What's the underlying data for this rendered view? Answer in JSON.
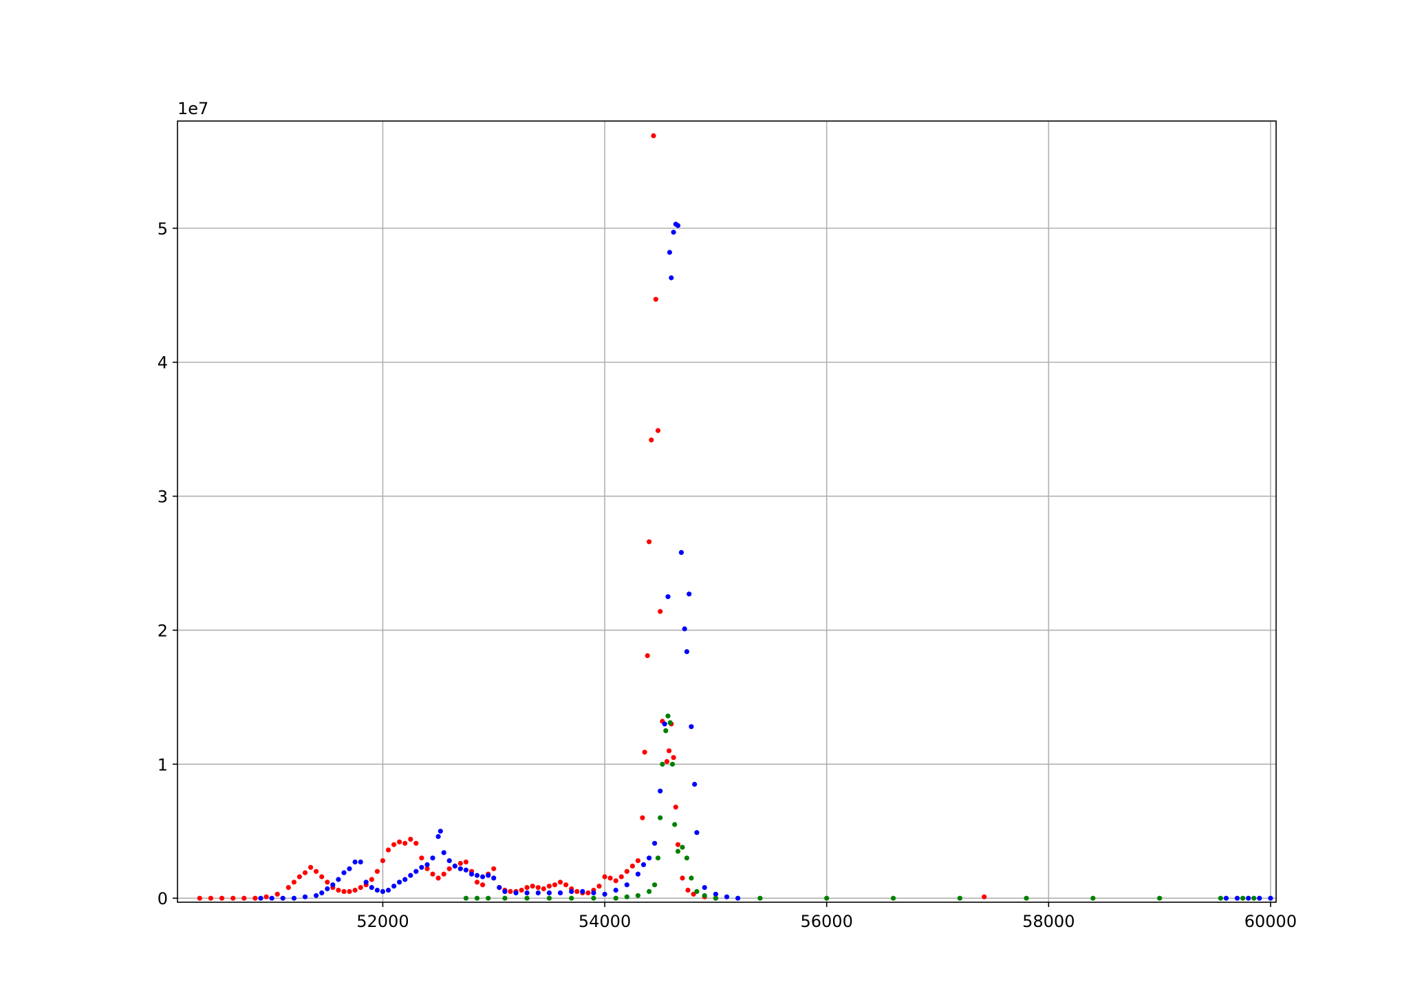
{
  "chart_data": {
    "type": "scatter",
    "title": "",
    "xlabel": "",
    "ylabel": "",
    "y_offset_label": "1e7",
    "xlim": [
      50150,
      60050
    ],
    "ylim": [
      -0.03,
      5.8
    ],
    "x_ticks": [
      52000,
      54000,
      56000,
      58000,
      60000
    ],
    "x_tick_labels": [
      "52000",
      "54000",
      "56000",
      "58000",
      "60000"
    ],
    "y_ticks": [
      0,
      1,
      2,
      3,
      4,
      5
    ],
    "y_tick_labels": [
      "0",
      "1",
      "2",
      "3",
      "4",
      "5"
    ],
    "grid": true,
    "legend": "none",
    "series": [
      {
        "color": "#ff0000",
        "points": [
          [
            50350,
            0
          ],
          [
            50450,
            0
          ],
          [
            50550,
            0
          ],
          [
            50650,
            0
          ],
          [
            50750,
            0
          ],
          [
            50850,
            0
          ],
          [
            50950,
            0.01
          ],
          [
            51050,
            0.03
          ],
          [
            51150,
            0.08
          ],
          [
            51200,
            0.12
          ],
          [
            51250,
            0.16
          ],
          [
            51300,
            0.19
          ],
          [
            51350,
            0.23
          ],
          [
            51400,
            0.2
          ],
          [
            51450,
            0.16
          ],
          [
            51500,
            0.12
          ],
          [
            51550,
            0.08
          ],
          [
            51600,
            0.06
          ],
          [
            51650,
            0.05
          ],
          [
            51700,
            0.05
          ],
          [
            51750,
            0.06
          ],
          [
            51800,
            0.08
          ],
          [
            51850,
            0.1
          ],
          [
            51900,
            0.14
          ],
          [
            51950,
            0.2
          ],
          [
            52000,
            0.28
          ],
          [
            52050,
            0.36
          ],
          [
            52100,
            0.4
          ],
          [
            52150,
            0.42
          ],
          [
            52200,
            0.41
          ],
          [
            52250,
            0.44
          ],
          [
            52300,
            0.41
          ],
          [
            52350,
            0.3
          ],
          [
            52400,
            0.22
          ],
          [
            52450,
            0.18
          ],
          [
            52500,
            0.15
          ],
          [
            52550,
            0.18
          ],
          [
            52600,
            0.22
          ],
          [
            52650,
            0.24
          ],
          [
            52700,
            0.26
          ],
          [
            52750,
            0.27
          ],
          [
            52800,
            0.2
          ],
          [
            52850,
            0.12
          ],
          [
            52900,
            0.1
          ],
          [
            52950,
            0.18
          ],
          [
            53000,
            0.22
          ],
          [
            53050,
            0.08
          ],
          [
            53100,
            0.06
          ],
          [
            53150,
            0.05
          ],
          [
            53200,
            0.05
          ],
          [
            53250,
            0.06
          ],
          [
            53300,
            0.08
          ],
          [
            53350,
            0.09
          ],
          [
            53400,
            0.08
          ],
          [
            53450,
            0.07
          ],
          [
            53500,
            0.09
          ],
          [
            53550,
            0.1
          ],
          [
            53600,
            0.12
          ],
          [
            53650,
            0.1
          ],
          [
            53700,
            0.07
          ],
          [
            53750,
            0.05
          ],
          [
            53800,
            0.04
          ],
          [
            53850,
            0.04
          ],
          [
            53900,
            0.06
          ],
          [
            53950,
            0.09
          ],
          [
            54000,
            0.16
          ],
          [
            54050,
            0.15
          ],
          [
            54100,
            0.13
          ],
          [
            54150,
            0.16
          ],
          [
            54200,
            0.2
          ],
          [
            54250,
            0.24
          ],
          [
            54300,
            0.28
          ],
          [
            54340,
            0.6
          ],
          [
            54360,
            1.09
          ],
          [
            54385,
            1.81
          ],
          [
            54400,
            2.66
          ],
          [
            54420,
            3.42
          ],
          [
            54440,
            5.69
          ],
          [
            54460,
            4.47
          ],
          [
            54480,
            3.49
          ],
          [
            54500,
            2.14
          ],
          [
            54520,
            1.32
          ],
          [
            54560,
            1.02
          ],
          [
            54580,
            1.1
          ],
          [
            54600,
            1.3
          ],
          [
            54620,
            1.05
          ],
          [
            54640,
            0.68
          ],
          [
            54660,
            0.4
          ],
          [
            54700,
            0.15
          ],
          [
            54750,
            0.06
          ],
          [
            54800,
            0.03
          ],
          [
            54900,
            0.01
          ],
          [
            55000,
            0
          ],
          [
            57420,
            0.01
          ]
        ]
      },
      {
        "color": "#0000ff",
        "points": [
          [
            50900,
            0
          ],
          [
            51000,
            0
          ],
          [
            51100,
            0
          ],
          [
            51200,
            0
          ],
          [
            51300,
            0.01
          ],
          [
            51400,
            0.02
          ],
          [
            51450,
            0.04
          ],
          [
            51500,
            0.07
          ],
          [
            51550,
            0.1
          ],
          [
            51600,
            0.14
          ],
          [
            51650,
            0.19
          ],
          [
            51700,
            0.22
          ],
          [
            51750,
            0.27
          ],
          [
            51800,
            0.27
          ],
          [
            51850,
            0.12
          ],
          [
            51900,
            0.08
          ],
          [
            51950,
            0.06
          ],
          [
            52000,
            0.05
          ],
          [
            52050,
            0.06
          ],
          [
            52100,
            0.09
          ],
          [
            52150,
            0.12
          ],
          [
            52200,
            0.14
          ],
          [
            52250,
            0.17
          ],
          [
            52300,
            0.2
          ],
          [
            52350,
            0.23
          ],
          [
            52400,
            0.25
          ],
          [
            52450,
            0.3
          ],
          [
            52500,
            0.46
          ],
          [
            52520,
            0.5
          ],
          [
            52550,
            0.34
          ],
          [
            52600,
            0.28
          ],
          [
            52650,
            0.24
          ],
          [
            52700,
            0.22
          ],
          [
            52750,
            0.21
          ],
          [
            52800,
            0.18
          ],
          [
            52850,
            0.17
          ],
          [
            52900,
            0.16
          ],
          [
            52950,
            0.17
          ],
          [
            53000,
            0.15
          ],
          [
            53050,
            0.08
          ],
          [
            53100,
            0.05
          ],
          [
            53200,
            0.04
          ],
          [
            53300,
            0.04
          ],
          [
            53400,
            0.04
          ],
          [
            53500,
            0.04
          ],
          [
            53600,
            0.04
          ],
          [
            53700,
            0.05
          ],
          [
            53800,
            0.05
          ],
          [
            53900,
            0.04
          ],
          [
            54000,
            0.03
          ],
          [
            54100,
            0.06
          ],
          [
            54200,
            0.1
          ],
          [
            54300,
            0.18
          ],
          [
            54350,
            0.25
          ],
          [
            54400,
            0.3
          ],
          [
            54450,
            0.41
          ],
          [
            54500,
            0.8
          ],
          [
            54540,
            1.3
          ],
          [
            54570,
            2.25
          ],
          [
            54585,
            4.82
          ],
          [
            54600,
            4.63
          ],
          [
            54620,
            4.97
          ],
          [
            54640,
            5.03
          ],
          [
            54660,
            5.02
          ],
          [
            54690,
            2.58
          ],
          [
            54720,
            2.01
          ],
          [
            54740,
            1.84
          ],
          [
            54760,
            2.27
          ],
          [
            54780,
            1.28
          ],
          [
            54810,
            0.85
          ],
          [
            54830,
            0.49
          ],
          [
            54900,
            0.08
          ],
          [
            55000,
            0.03
          ],
          [
            55100,
            0.01
          ],
          [
            55200,
            0
          ],
          [
            59600,
            0
          ],
          [
            59700,
            0
          ],
          [
            59800,
            0
          ],
          [
            59900,
            0
          ],
          [
            60000,
            0
          ]
        ]
      },
      {
        "color": "#008000",
        "points": [
          [
            52750,
            0
          ],
          [
            52850,
            0
          ],
          [
            52950,
            0
          ],
          [
            53100,
            0
          ],
          [
            53300,
            0
          ],
          [
            53500,
            0
          ],
          [
            53700,
            0
          ],
          [
            53900,
            0
          ],
          [
            54100,
            0
          ],
          [
            54200,
            0.01
          ],
          [
            54300,
            0.02
          ],
          [
            54400,
            0.05
          ],
          [
            54450,
            0.1
          ],
          [
            54480,
            0.3
          ],
          [
            54500,
            0.6
          ],
          [
            54520,
            1.0
          ],
          [
            54550,
            1.25
          ],
          [
            54570,
            1.36
          ],
          [
            54590,
            1.31
          ],
          [
            54610,
            1.0
          ],
          [
            54630,
            0.55
          ],
          [
            54660,
            0.35
          ],
          [
            54700,
            0.38
          ],
          [
            54740,
            0.3
          ],
          [
            54780,
            0.15
          ],
          [
            54830,
            0.05
          ],
          [
            54900,
            0.02
          ],
          [
            55000,
            0
          ],
          [
            55400,
            0
          ],
          [
            56000,
            0
          ],
          [
            56600,
            0
          ],
          [
            57200,
            0
          ],
          [
            57800,
            0
          ],
          [
            58400,
            0
          ],
          [
            59000,
            0
          ],
          [
            59550,
            0
          ],
          [
            59750,
            0
          ],
          [
            59850,
            0
          ]
        ]
      }
    ]
  }
}
